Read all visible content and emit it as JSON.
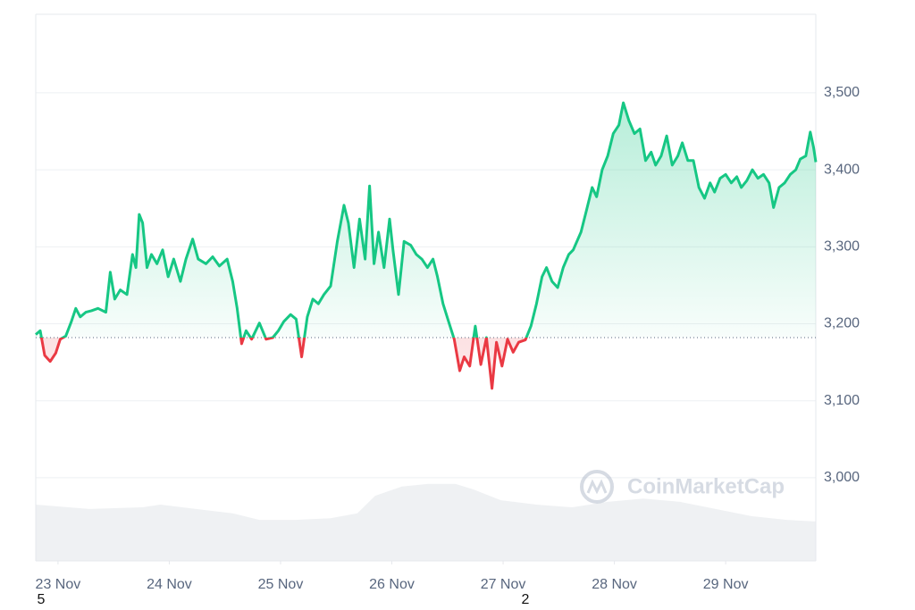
{
  "chart_data": {
    "type": "line",
    "watermark": "CoinMarketCap",
    "annotations": [
      "5",
      "2"
    ],
    "baseline": 3182,
    "x": [
      -0.2,
      -0.16,
      -0.12,
      -0.07,
      -0.02,
      0.02,
      0.07,
      0.12,
      0.16,
      0.2,
      0.25,
      0.3,
      0.36,
      0.43,
      0.47,
      0.51,
      0.56,
      0.62,
      0.67,
      0.7,
      0.73,
      0.76,
      0.8,
      0.84,
      0.89,
      0.94,
      0.99,
      1.04,
      1.1,
      1.15,
      1.21,
      1.26,
      1.33,
      1.39,
      1.45,
      1.52,
      1.57,
      1.61,
      1.65,
      1.69,
      1.74,
      1.81,
      1.87,
      1.93,
      1.98,
      2.03,
      2.09,
      2.14,
      2.19,
      2.24,
      2.29,
      2.34,
      2.39,
      2.45,
      2.51,
      2.57,
      2.61,
      2.66,
      2.71,
      2.76,
      2.8,
      2.84,
      2.88,
      2.93,
      2.98,
      3.01,
      3.06,
      3.11,
      3.17,
      3.22,
      3.27,
      3.32,
      3.37,
      3.41,
      3.46,
      3.51,
      3.56,
      3.61,
      3.65,
      3.7,
      3.75,
      3.8,
      3.85,
      3.9,
      3.94,
      3.99,
      4.04,
      4.09,
      4.14,
      4.2,
      4.25,
      4.3,
      4.35,
      4.39,
      4.44,
      4.49,
      4.54,
      4.59,
      4.63,
      4.7,
      4.75,
      4.8,
      4.84,
      4.89,
      4.94,
      4.99,
      5.04,
      5.08,
      5.13,
      5.18,
      5.23,
      5.28,
      5.33,
      5.37,
      5.42,
      5.47,
      5.52,
      5.57,
      5.61,
      5.66,
      5.71,
      5.76,
      5.81,
      5.86,
      5.9,
      5.95,
      6.0,
      6.05,
      6.1,
      6.14,
      6.19,
      6.24,
      6.29,
      6.34,
      6.39,
      6.43,
      6.48,
      6.53,
      6.58,
      6.63,
      6.67,
      6.72,
      6.76,
      6.79,
      6.81
    ],
    "series": [
      {
        "color": "#16c784",
        "color_below": "#ea3943",
        "values": [
          3186,
          3191,
          3159,
          3151,
          3162,
          3180,
          3184,
          3203,
          3220,
          3209,
          3215,
          3217,
          3220,
          3215,
          3267,
          3232,
          3244,
          3238,
          3290,
          3273,
          3342,
          3331,
          3273,
          3290,
          3278,
          3296,
          3261,
          3284,
          3255,
          3284,
          3310,
          3284,
          3278,
          3287,
          3275,
          3284,
          3255,
          3220,
          3174,
          3191,
          3180,
          3201,
          3180,
          3182,
          3191,
          3203,
          3212,
          3206,
          3157,
          3209,
          3232,
          3226,
          3238,
          3249,
          3307,
          3354,
          3331,
          3273,
          3336,
          3284,
          3379,
          3278,
          3319,
          3273,
          3336,
          3296,
          3238,
          3307,
          3302,
          3290,
          3284,
          3273,
          3284,
          3261,
          3226,
          3203,
          3180,
          3139,
          3157,
          3145,
          3197,
          3147,
          3182,
          3116,
          3176,
          3145,
          3180,
          3163,
          3176,
          3179,
          3197,
          3226,
          3261,
          3273,
          3255,
          3247,
          3273,
          3290,
          3296,
          3319,
          3348,
          3377,
          3365,
          3400,
          3418,
          3447,
          3458,
          3487,
          3464,
          3447,
          3453,
          3412,
          3423,
          3406,
          3418,
          3444,
          3406,
          3418,
          3435,
          3412,
          3412,
          3377,
          3363,
          3383,
          3371,
          3389,
          3394,
          3383,
          3391,
          3377,
          3386,
          3400,
          3389,
          3394,
          3383,
          3351,
          3377,
          3383,
          3394,
          3400,
          3414,
          3418,
          3449,
          3429,
          3410
        ]
      }
    ],
    "volume": {
      "color": "#eff1f3",
      "ylim": [
        0,
        100
      ],
      "x": [
        -0.2,
        0.28,
        0.76,
        0.92,
        1.24,
        1.57,
        1.81,
        2.13,
        2.45,
        2.69,
        2.85,
        3.09,
        3.33,
        3.57,
        3.73,
        3.98,
        4.3,
        4.62,
        4.94,
        5.26,
        5.59,
        5.91,
        6.23,
        6.55,
        6.81
      ],
      "values": [
        10.3,
        9.5,
        9.8,
        10.3,
        9.5,
        8.7,
        7.5,
        7.5,
        7.8,
        8.7,
        11.9,
        13.6,
        14.1,
        14.1,
        13.1,
        11.1,
        10.3,
        9.8,
        10.8,
        11.4,
        10.8,
        9.5,
        8.2,
        7.5,
        7.2
      ]
    },
    "xlim": [
      -0.2,
      6.81
    ],
    "xticks": [
      {
        "value": 0,
        "label": "23 Nov"
      },
      {
        "value": 1,
        "label": "24 Nov"
      },
      {
        "value": 2,
        "label": "25 Nov"
      },
      {
        "value": 3,
        "label": "26 Nov"
      },
      {
        "value": 4,
        "label": "27 Nov"
      },
      {
        "value": 5,
        "label": "28 Nov"
      },
      {
        "value": 6,
        "label": "29 Nov"
      }
    ],
    "ylim": [
      2892,
      3602
    ],
    "yticks": [
      {
        "value": 3000,
        "label": "3,000"
      },
      {
        "value": 3100,
        "label": "3,100"
      },
      {
        "value": 3200,
        "label": "3,200"
      },
      {
        "value": 3300,
        "label": "3,300"
      },
      {
        "value": 3400,
        "label": "3,400"
      },
      {
        "value": 3500,
        "label": "3,500"
      }
    ],
    "grid": true
  }
}
